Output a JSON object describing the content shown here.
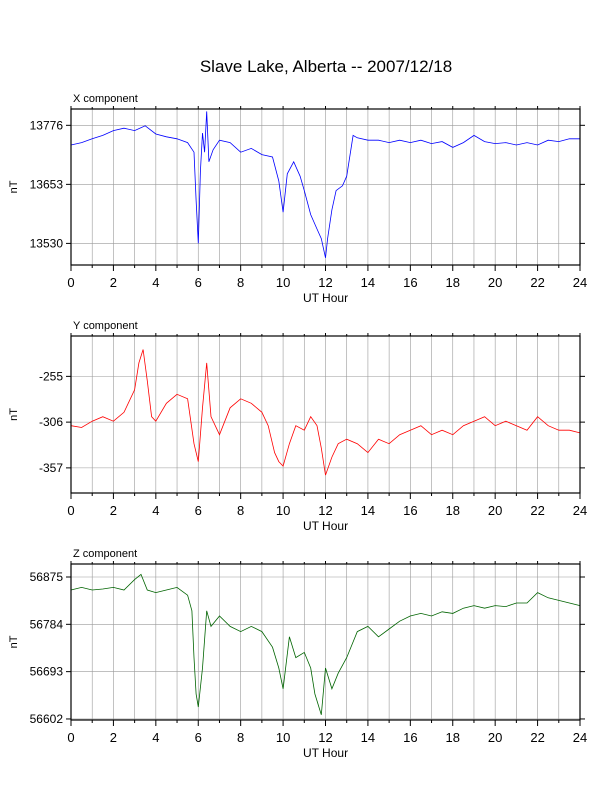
{
  "title": "Slave Lake, Alberta -- 2007/12/18",
  "chart_data": [
    {
      "type": "line",
      "title": "X component",
      "xlabel": "UT Hour",
      "ylabel": "nT",
      "color": "#0000ff",
      "xlim": [
        0,
        24
      ],
      "ylim": [
        13485,
        13810
      ],
      "xticks": [
        0,
        2,
        4,
        6,
        8,
        10,
        12,
        14,
        16,
        18,
        20,
        22,
        24
      ],
      "yticks": [
        13530,
        13653,
        13776
      ],
      "grid": true,
      "series": [
        {
          "x": [
            0,
            0.5,
            1,
            1.5,
            2,
            2.5,
            3,
            3.5,
            4,
            4.5,
            5,
            5.5,
            5.8,
            5.9,
            6,
            6.1,
            6.2,
            6.3,
            6.4,
            6.5,
            6.7,
            7,
            7.5,
            8,
            8.5,
            9,
            9.5,
            9.8,
            10,
            10.2,
            10.5,
            10.8,
            11,
            11.3,
            11.6,
            11.8,
            12,
            12.1,
            12.3,
            12.5,
            12.8,
            13,
            13.3,
            13.5,
            14,
            14.5,
            15,
            15.5,
            16,
            16.5,
            17,
            17.5,
            18,
            18.5,
            19,
            19.5,
            20,
            20.5,
            21,
            21.5,
            22,
            22.5,
            23,
            23.5,
            24
          ],
          "values": [
            13735,
            13740,
            13748,
            13755,
            13765,
            13770,
            13765,
            13775,
            13758,
            13752,
            13748,
            13740,
            13720,
            13620,
            13530,
            13680,
            13760,
            13720,
            13805,
            13700,
            13725,
            13745,
            13740,
            13720,
            13728,
            13715,
            13710,
            13660,
            13595,
            13675,
            13700,
            13670,
            13640,
            13590,
            13560,
            13540,
            13500,
            13540,
            13600,
            13640,
            13650,
            13670,
            13755,
            13750,
            13745,
            13745,
            13740,
            13745,
            13740,
            13745,
            13738,
            13742,
            13730,
            13740,
            13755,
            13742,
            13738,
            13740,
            13735,
            13740,
            13735,
            13745,
            13742,
            13748,
            13748
          ]
        }
      ]
    },
    {
      "type": "line",
      "title": "Y component",
      "xlabel": "UT Hour",
      "ylabel": "nT",
      "color": "#ff0000",
      "xlim": [
        0,
        24
      ],
      "ylim": [
        -385,
        -210
      ],
      "xticks": [
        0,
        2,
        4,
        6,
        8,
        10,
        12,
        14,
        16,
        18,
        20,
        22,
        24
      ],
      "yticks": [
        -357,
        -306,
        -255
      ],
      "grid": true,
      "series": [
        {
          "x": [
            0,
            0.5,
            1,
            1.5,
            2,
            2.5,
            3,
            3.2,
            3.4,
            3.6,
            3.8,
            4,
            4.5,
            5,
            5.5,
            5.8,
            6,
            6.2,
            6.4,
            6.6,
            7,
            7.5,
            8,
            8.5,
            9,
            9.3,
            9.6,
            9.8,
            10,
            10.3,
            10.6,
            11,
            11.3,
            11.6,
            11.8,
            12,
            12.3,
            12.6,
            13,
            13.5,
            14,
            14.5,
            15,
            15.5,
            16,
            16.5,
            17,
            17.5,
            18,
            18.5,
            19,
            19.5,
            20,
            20.5,
            21,
            21.5,
            22,
            22.5,
            23,
            23.5,
            24
          ],
          "values": [
            -310,
            -312,
            -305,
            -300,
            -305,
            -295,
            -270,
            -240,
            -225,
            -260,
            -300,
            -305,
            -285,
            -275,
            -280,
            -330,
            -350,
            -290,
            -240,
            -300,
            -320,
            -290,
            -280,
            -285,
            -295,
            -310,
            -340,
            -350,
            -355,
            -330,
            -310,
            -315,
            -300,
            -310,
            -335,
            -365,
            -345,
            -330,
            -325,
            -330,
            -340,
            -325,
            -330,
            -320,
            -315,
            -310,
            -320,
            -315,
            -320,
            -310,
            -305,
            -300,
            -310,
            -305,
            -310,
            -315,
            -300,
            -310,
            -315,
            -315,
            -318
          ]
        }
      ]
    },
    {
      "type": "line",
      "title": "Z component",
      "xlabel": "UT Hour",
      "ylabel": "nT",
      "color": "#006400",
      "xlim": [
        0,
        24
      ],
      "ylim": [
        56600,
        56900
      ],
      "xticks": [
        0,
        2,
        4,
        6,
        8,
        10,
        12,
        14,
        16,
        18,
        20,
        22,
        24
      ],
      "yticks": [
        56602,
        56693,
        56784,
        56875
      ],
      "grid": true,
      "series": [
        {
          "x": [
            0,
            0.5,
            1,
            1.5,
            2,
            2.5,
            3,
            3.3,
            3.6,
            4,
            4.5,
            5,
            5.5,
            5.7,
            5.8,
            5.9,
            6,
            6.2,
            6.4,
            6.6,
            7,
            7.5,
            8,
            8.5,
            9,
            9.5,
            9.8,
            10,
            10.3,
            10.6,
            11,
            11.3,
            11.5,
            11.8,
            12,
            12.3,
            12.6,
            13,
            13.5,
            14,
            14.5,
            15,
            15.5,
            16,
            16.5,
            17,
            17.5,
            18,
            18.5,
            19,
            19.5,
            20,
            20.5,
            21,
            21.5,
            22,
            22.5,
            23,
            23.5,
            24
          ],
          "values": [
            56850,
            56855,
            56850,
            56852,
            56855,
            56850,
            56870,
            56880,
            56850,
            56845,
            56850,
            56855,
            56840,
            56810,
            56720,
            56650,
            56625,
            56700,
            56810,
            56780,
            56800,
            56780,
            56770,
            56780,
            56770,
            56740,
            56700,
            56660,
            56760,
            56720,
            56730,
            56700,
            56650,
            56610,
            56700,
            56660,
            56690,
            56720,
            56770,
            56780,
            56760,
            56775,
            56790,
            56800,
            56805,
            56800,
            56808,
            56805,
            56815,
            56820,
            56815,
            56820,
            56818,
            56825,
            56825,
            56845,
            56835,
            56830,
            56825,
            56820
          ]
        }
      ]
    }
  ]
}
